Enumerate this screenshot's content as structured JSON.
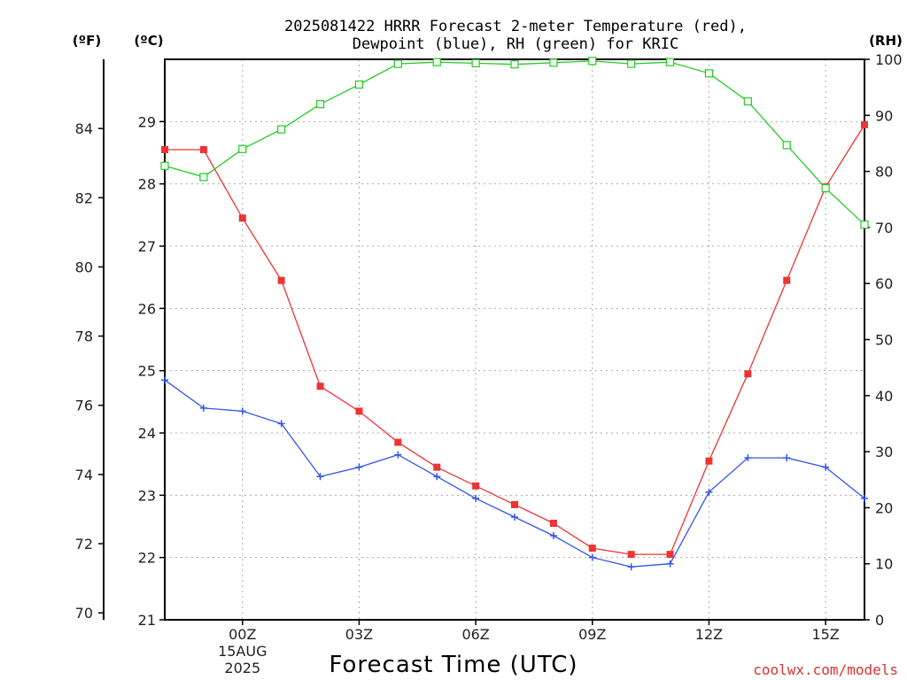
{
  "chart_data": {
    "type": "line",
    "title_line1": "2025081422 HRRR Forecast 2-meter Temperature (red),",
    "title_line2": "Dewpoint (blue), RH (green) for KRIC",
    "xlabel": "Forecast Time (UTC)",
    "credit": "coolwx.com/models",
    "units": {
      "fahrenheit": "(ºF)",
      "celsius": "(ºC)",
      "rh": "(RH)"
    },
    "x_start_hour": -2,
    "x_end_hour": 16,
    "x_ticks": [
      {
        "hour": 0,
        "label": "00Z",
        "sub1": "15AUG",
        "sub2": "2025"
      },
      {
        "hour": 3,
        "label": "03Z"
      },
      {
        "hour": 6,
        "label": "06Z"
      },
      {
        "hour": 9,
        "label": "09Z"
      },
      {
        "hour": 12,
        "label": "12Z"
      },
      {
        "hour": 15,
        "label": "15Z"
      }
    ],
    "celsius_axis": {
      "min": 21,
      "max": 30,
      "ticks": [
        21,
        22,
        23,
        24,
        25,
        26,
        27,
        28,
        29
      ]
    },
    "fahrenheit_axis": {
      "min": 69.8,
      "max": 86.0,
      "ticks": [
        70,
        72,
        74,
        76,
        78,
        80,
        82,
        84
      ]
    },
    "rh_axis": {
      "min": 0,
      "max": 100,
      "ticks": [
        0,
        10,
        20,
        30,
        40,
        50,
        60,
        70,
        80,
        90,
        100
      ]
    },
    "series": [
      {
        "name": "Temperature",
        "axis": "celsius",
        "color": "#ee3333",
        "marker": "filled-square",
        "x": [
          -2,
          -1,
          0,
          1,
          2,
          3,
          4,
          5,
          6,
          7,
          8,
          9,
          10,
          11,
          12,
          13,
          14,
          15,
          16
        ],
        "values": [
          28.55,
          28.55,
          27.45,
          26.45,
          24.75,
          24.35,
          23.85,
          23.45,
          23.15,
          22.85,
          22.55,
          22.15,
          22.05,
          22.05,
          23.55,
          24.95,
          26.45,
          27.95,
          28.95
        ]
      },
      {
        "name": "Dewpoint",
        "axis": "celsius",
        "color": "#3355ee",
        "marker": "plus",
        "x": [
          -2,
          -1,
          0,
          1,
          2,
          3,
          4,
          5,
          6,
          7,
          8,
          9,
          10,
          11,
          12,
          13,
          14,
          15,
          16
        ],
        "values": [
          24.85,
          24.4,
          24.35,
          24.15,
          23.3,
          23.45,
          23.65,
          23.3,
          22.95,
          22.65,
          22.35,
          22.0,
          21.85,
          21.9,
          23.05,
          23.6,
          23.6,
          23.45,
          22.95
        ]
      },
      {
        "name": "RH",
        "axis": "rh",
        "color": "#22cc22",
        "marker": "open-square",
        "x": [
          -2,
          -1,
          0,
          1,
          2,
          3,
          4,
          5,
          6,
          7,
          8,
          9,
          10,
          11,
          12,
          13,
          14,
          15,
          16
        ],
        "values": [
          81,
          79,
          84,
          87.5,
          92,
          95.5,
          99.2,
          99.5,
          99.3,
          99.1,
          99.4,
          99.7,
          99.2,
          99.5,
          97.5,
          92.5,
          84.7,
          77,
          70.5
        ]
      }
    ]
  }
}
